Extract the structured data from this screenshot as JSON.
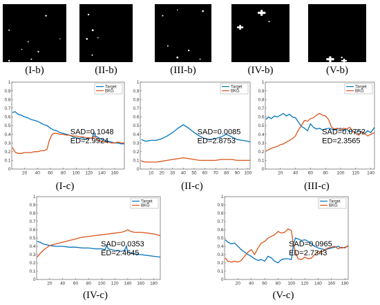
{
  "colors": {
    "target": "#0072BD",
    "bkg": "#D95319"
  },
  "masks": [
    {
      "label": "(I-b)",
      "blobs": [
        [
          0.68,
          0.2,
          1.2
        ],
        [
          0.1,
          0.45,
          1.0
        ],
        [
          0.4,
          0.65,
          0.9
        ],
        [
          0.56,
          0.82,
          1.1
        ],
        [
          0.45,
          0.95,
          1.0
        ],
        [
          0.1,
          0.98,
          1.2
        ],
        [
          0.3,
          0.78,
          0.8
        ],
        [
          0.9,
          0.6,
          0.7
        ]
      ]
    },
    {
      "label": "(II-b)",
      "blobs": [
        [
          0.17,
          0.18,
          1.2
        ],
        [
          0.25,
          0.45,
          1.4
        ],
        [
          0.14,
          0.6,
          1.3
        ],
        [
          0.24,
          0.88,
          1.0
        ],
        [
          0.35,
          0.58,
          0.8
        ]
      ]
    },
    {
      "label": "(III-b)",
      "blobs": [
        [
          0.85,
          0.12,
          1.3
        ],
        [
          0.14,
          0.2,
          1.0
        ],
        [
          0.4,
          0.1,
          0.8
        ],
        [
          0.23,
          0.72,
          1.0
        ],
        [
          0.6,
          0.8,
          1.2
        ],
        [
          0.4,
          0.92,
          1.4
        ],
        [
          0.8,
          0.95,
          0.9
        ]
      ]
    },
    {
      "label": "(IV-b)",
      "blobs": [
        [
          0.52,
          0.15,
          3.5
        ],
        [
          0.15,
          0.4,
          2.8
        ],
        [
          0.65,
          0.3,
          1.0
        ]
      ]
    },
    {
      "label": "(V-b)",
      "blobs": [
        [
          0.38,
          0.95,
          3.5
        ],
        [
          0.62,
          1.0,
          2.5
        ],
        [
          0.58,
          0.92,
          1.2
        ]
      ]
    }
  ],
  "chart_data": [
    {
      "type": "line",
      "label": "(I-c)",
      "xlim": [
        0,
        175
      ],
      "ylim": [
        0,
        1
      ],
      "xticks": [
        20,
        40,
        60,
        80,
        100,
        120,
        140,
        160
      ],
      "yticks": [
        0,
        0.1,
        0.2,
        0.3,
        0.4,
        0.5,
        0.6,
        0.7,
        0.8,
        0.9,
        1
      ],
      "legend": "top-right",
      "series": [
        {
          "name": "Target",
          "x": [
            1,
            5,
            10,
            15,
            20,
            25,
            30,
            35,
            40,
            45,
            50,
            55,
            60,
            65,
            70,
            75,
            80,
            85,
            90,
            95,
            100,
            105,
            110,
            115,
            120,
            125,
            128,
            130,
            135,
            140,
            145,
            150,
            155,
            160,
            165,
            170,
            175
          ],
          "y": [
            0.65,
            0.66,
            0.63,
            0.62,
            0.6,
            0.59,
            0.57,
            0.56,
            0.55,
            0.53,
            0.51,
            0.5,
            0.47,
            0.45,
            0.44,
            0.42,
            0.41,
            0.4,
            0.39,
            0.37,
            0.36,
            0.35,
            0.36,
            0.34,
            0.35,
            0.36,
            0.42,
            0.38,
            0.36,
            0.34,
            0.33,
            0.32,
            0.31,
            0.3,
            0.3,
            0.29,
            0.29
          ]
        },
        {
          "name": "BKG",
          "x": [
            1,
            3,
            6,
            10,
            15,
            20,
            25,
            30,
            35,
            40,
            45,
            50,
            55,
            58,
            62,
            65,
            70,
            75,
            80,
            85,
            90,
            95,
            100,
            105,
            110,
            115,
            120,
            125,
            128,
            132,
            135,
            140,
            145,
            150,
            155,
            160,
            165,
            170,
            175
          ],
          "y": [
            0.25,
            0.22,
            0.19,
            0.18,
            0.18,
            0.19,
            0.19,
            0.19,
            0.2,
            0.2,
            0.21,
            0.21,
            0.23,
            0.32,
            0.39,
            0.41,
            0.41,
            0.4,
            0.4,
            0.39,
            0.39,
            0.38,
            0.38,
            0.37,
            0.37,
            0.36,
            0.36,
            0.35,
            0.38,
            0.35,
            0.33,
            0.32,
            0.31,
            0.31,
            0.3,
            0.3,
            0.31,
            0.3,
            0.3
          ]
        }
      ],
      "annotations": [
        "SAD=0.1048",
        "ED=2.9924"
      ]
    },
    {
      "type": "line",
      "label": "(II-c)",
      "xlim": [
        0,
        102
      ],
      "ylim": [
        0,
        1
      ],
      "xticks": [
        10,
        20,
        30,
        40,
        50,
        60,
        70,
        80,
        90,
        100
      ],
      "yticks": [
        0,
        0.1,
        0.2,
        0.3,
        0.4,
        0.5,
        0.6,
        0.7,
        0.8,
        0.9,
        1
      ],
      "legend": "top-right",
      "series": [
        {
          "name": "Target",
          "x": [
            1,
            5,
            10,
            15,
            20,
            25,
            30,
            35,
            40,
            45,
            50,
            55,
            60,
            65,
            70,
            75,
            80,
            85,
            90,
            95,
            100,
            102
          ],
          "y": [
            0.34,
            0.32,
            0.33,
            0.33,
            0.35,
            0.38,
            0.42,
            0.47,
            0.51,
            0.47,
            0.42,
            0.38,
            0.35,
            0.34,
            0.35,
            0.37,
            0.4,
            0.37,
            0.34,
            0.33,
            0.32,
            0.31
          ]
        },
        {
          "name": "BKG",
          "x": [
            1,
            5,
            10,
            15,
            20,
            25,
            30,
            35,
            40,
            45,
            50,
            55,
            60,
            65,
            70,
            75,
            80,
            85,
            90,
            95,
            100,
            102
          ],
          "y": [
            0.09,
            0.08,
            0.08,
            0.08,
            0.09,
            0.1,
            0.11,
            0.12,
            0.13,
            0.12,
            0.11,
            0.1,
            0.1,
            0.1,
            0.1,
            0.11,
            0.11,
            0.11,
            0.1,
            0.1,
            0.1,
            0.1
          ]
        }
      ],
      "annotations": [
        "SAD=0.0085",
        "ED=2.8753"
      ]
    },
    {
      "type": "line",
      "label": "(III-c)",
      "xlim": [
        0,
        145
      ],
      "ylim": [
        0,
        1
      ],
      "xticks": [
        20,
        40,
        60,
        80,
        100,
        120,
        140
      ],
      "yticks": [
        0,
        0.1,
        0.2,
        0.3,
        0.4,
        0.5,
        0.6,
        0.7,
        0.8,
        0.9,
        1
      ],
      "legend": "top-right",
      "series": [
        {
          "name": "Target",
          "x": [
            1,
            4,
            8,
            12,
            16,
            20,
            24,
            28,
            32,
            36,
            40,
            44,
            48,
            52,
            56,
            60,
            64,
            68,
            72,
            76,
            80,
            84,
            88,
            92,
            96,
            100,
            104,
            108,
            112,
            116,
            120,
            124,
            128,
            132,
            136,
            140,
            145
          ],
          "y": [
            0.57,
            0.6,
            0.58,
            0.61,
            0.6,
            0.62,
            0.64,
            0.61,
            0.63,
            0.6,
            0.59,
            0.54,
            0.49,
            0.47,
            0.44,
            0.52,
            0.48,
            0.46,
            0.47,
            0.45,
            0.46,
            0.47,
            0.46,
            0.45,
            0.46,
            0.47,
            0.44,
            0.46,
            0.43,
            0.44,
            0.42,
            0.44,
            0.43,
            0.41,
            0.44,
            0.42,
            0.48
          ]
        },
        {
          "name": "BKG",
          "x": [
            1,
            4,
            8,
            12,
            16,
            20,
            24,
            28,
            32,
            36,
            40,
            44,
            48,
            52,
            56,
            60,
            64,
            68,
            72,
            76,
            80,
            84,
            88,
            92,
            96,
            100,
            104,
            108,
            112,
            116,
            120,
            124,
            128,
            132,
            136,
            140,
            145
          ],
          "y": [
            0.21,
            0.22,
            0.24,
            0.25,
            0.26,
            0.28,
            0.29,
            0.31,
            0.33,
            0.35,
            0.38,
            0.45,
            0.5,
            0.56,
            0.55,
            0.58,
            0.59,
            0.62,
            0.64,
            0.62,
            0.61,
            0.57,
            0.48,
            0.46,
            0.47,
            0.45,
            0.47,
            0.46,
            0.48,
            0.44,
            0.41,
            0.39,
            0.43,
            0.41,
            0.38,
            0.4,
            0.42
          ]
        }
      ],
      "annotations": [
        "SAD=0.0752",
        "ED=2.3565"
      ]
    },
    {
      "type": "line",
      "label": "(IV-c)",
      "xlim": [
        0,
        190
      ],
      "ylim": [
        0,
        1
      ],
      "xticks": [
        20,
        40,
        60,
        80,
        100,
        120,
        140,
        160,
        180
      ],
      "yticks": [
        0,
        0.1,
        0.2,
        0.3,
        0.4,
        0.5,
        0.6,
        0.7,
        0.8,
        0.9,
        1
      ],
      "legend": "top-right",
      "series": [
        {
          "name": "Target",
          "x": [
            1,
            5,
            10,
            15,
            20,
            30,
            40,
            50,
            60,
            70,
            80,
            90,
            100,
            105,
            108,
            110,
            115,
            120,
            125,
            130,
            135,
            138,
            140,
            145,
            150,
            160,
            170,
            180,
            190
          ],
          "y": [
            0.46,
            0.45,
            0.43,
            0.42,
            0.41,
            0.4,
            0.4,
            0.39,
            0.39,
            0.38,
            0.38,
            0.37,
            0.37,
            0.36,
            0.41,
            0.37,
            0.36,
            0.35,
            0.35,
            0.34,
            0.35,
            0.4,
            0.33,
            0.32,
            0.31,
            0.3,
            0.29,
            0.28,
            0.27
          ]
        },
        {
          "name": "BKG",
          "x": [
            1,
            5,
            10,
            15,
            20,
            30,
            40,
            50,
            60,
            70,
            80,
            90,
            100,
            110,
            120,
            130,
            135,
            140,
            145,
            150,
            160,
            170,
            180,
            190
          ],
          "y": [
            0.27,
            0.31,
            0.35,
            0.38,
            0.41,
            0.43,
            0.45,
            0.47,
            0.49,
            0.51,
            0.52,
            0.53,
            0.54,
            0.55,
            0.56,
            0.57,
            0.58,
            0.6,
            0.58,
            0.57,
            0.57,
            0.56,
            0.55,
            0.53
          ]
        }
      ],
      "annotations": [
        "SAD=0.0353",
        "ED=2.4645"
      ]
    },
    {
      "type": "line",
      "label": "(V-c)",
      "xlim": [
        0,
        185
      ],
      "ylim": [
        0,
        1
      ],
      "xticks": [
        20,
        40,
        60,
        80,
        100,
        120,
        140,
        160,
        180
      ],
      "yticks": [
        0,
        0.1,
        0.2,
        0.3,
        0.4,
        0.5,
        0.6,
        0.7,
        0.8,
        0.9,
        1
      ],
      "legend": "top-right",
      "series": [
        {
          "name": "Target",
          "x": [
            1,
            5,
            10,
            15,
            20,
            25,
            30,
            35,
            40,
            45,
            50,
            55,
            60,
            65,
            70,
            75,
            80,
            85,
            90,
            95,
            100,
            103,
            106,
            110,
            115,
            120,
            125,
            130,
            135,
            140,
            145,
            150,
            155,
            160,
            165,
            170,
            175,
            180,
            185
          ],
          "y": [
            0.48,
            0.45,
            0.43,
            0.44,
            0.4,
            0.36,
            0.33,
            0.3,
            0.28,
            0.25,
            0.23,
            0.24,
            0.22,
            0.28,
            0.26,
            0.22,
            0.2,
            0.24,
            0.25,
            0.25,
            0.24,
            0.42,
            0.5,
            0.49,
            0.47,
            0.48,
            0.46,
            0.43,
            0.4,
            0.38,
            0.37,
            0.36,
            0.37,
            0.38,
            0.39,
            0.4,
            0.38,
            0.39,
            0.4
          ]
        },
        {
          "name": "BKG",
          "x": [
            1,
            5,
            10,
            15,
            20,
            25,
            30,
            35,
            40,
            45,
            50,
            55,
            60,
            65,
            70,
            75,
            80,
            85,
            90,
            95,
            100,
            103,
            106,
            110,
            115,
            120,
            125,
            130,
            135,
            140,
            145,
            150,
            155,
            160,
            165,
            170,
            175,
            180,
            185
          ],
          "y": [
            0.26,
            0.22,
            0.21,
            0.22,
            0.21,
            0.23,
            0.28,
            0.33,
            0.36,
            0.3,
            0.38,
            0.44,
            0.46,
            0.5,
            0.52,
            0.54,
            0.58,
            0.56,
            0.57,
            0.61,
            0.59,
            0.42,
            0.33,
            0.25,
            0.24,
            0.27,
            0.25,
            0.26,
            0.3,
            0.34,
            0.33,
            0.36,
            0.38,
            0.39,
            0.4,
            0.37,
            0.39,
            0.38,
            0.41
          ]
        }
      ],
      "annotations": [
        "SAD=0.0965",
        "ED=2.7343"
      ]
    }
  ]
}
